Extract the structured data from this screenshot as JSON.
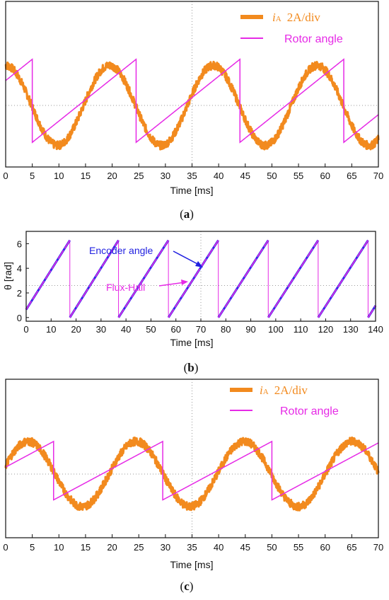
{
  "colors": {
    "current": "#f28a1e",
    "rotor": "#e62ae6",
    "encoder": "#2a2ae8",
    "grid": "#9a9a9a"
  },
  "chart_data": [
    {
      "id": "a",
      "type": "line",
      "caption": "a",
      "xlabel": "Time [ms]",
      "ylabel": "",
      "xlim": [
        0,
        70
      ],
      "xticks": [
        0,
        5,
        10,
        15,
        20,
        25,
        30,
        35,
        40,
        45,
        50,
        55,
        60,
        65,
        70
      ],
      "ylim": [
        -1,
        1
      ],
      "grid": "center crosshair (dotted)",
      "legend_position": "top-right",
      "legend": [
        {
          "italic": "i",
          "sub": "A",
          "rest": "2A/div"
        },
        {
          "text": "Rotor angle"
        }
      ],
      "series": [
        {
          "kind": "current",
          "period_ms": 19.5,
          "peak_time_ms": 0,
          "amplitude_div": 0.65
        },
        {
          "kind": "rotor_angle",
          "wraps_at_ms": [
            5,
            24.5,
            44,
            63.5
          ],
          "low_div": -0.6,
          "high_div": 0.75
        }
      ]
    },
    {
      "id": "b",
      "type": "line",
      "caption": "b",
      "xlabel": "Time [ms]",
      "ylabel": "θ [rad]",
      "xlim": [
        0,
        140
      ],
      "xticks": [
        0,
        10,
        20,
        30,
        40,
        50,
        60,
        70,
        80,
        90,
        100,
        110,
        120,
        130,
        140
      ],
      "ylim": [
        -0.3,
        7
      ],
      "yticks": [
        0,
        2,
        4,
        6
      ],
      "grid": "center crosshair (dotted)",
      "annotations": [
        "Encoder angle",
        "Flux-Hall"
      ],
      "series": [
        {
          "name": "Encoder angle",
          "wraps_at_ms": [
            17.5,
            37,
            57,
            77,
            97,
            117,
            137
          ],
          "range_rad": [
            0,
            6.28
          ]
        },
        {
          "name": "Flux-Hall",
          "wraps_at_ms": [
            17.5,
            37,
            57,
            77,
            97,
            117,
            137
          ],
          "range_rad": [
            0,
            6.28
          ]
        }
      ]
    },
    {
      "id": "c",
      "type": "line",
      "caption": "c",
      "xlabel": "Time [ms]",
      "ylabel": "",
      "xlim": [
        0,
        70
      ],
      "xticks": [
        0,
        5,
        10,
        15,
        20,
        25,
        30,
        35,
        40,
        45,
        50,
        55,
        60,
        65,
        70
      ],
      "ylim": [
        -1,
        1
      ],
      "grid": "center crosshair (dotted)",
      "legend_position": "top-right",
      "legend": [
        {
          "italic": "i",
          "sub": "A",
          "rest": "2A/div"
        },
        {
          "text": "Rotor angle"
        }
      ],
      "series": [
        {
          "kind": "current",
          "period_ms": 20.3,
          "peak_time_ms": 4.2,
          "amplitude_div": 0.53
        },
        {
          "kind": "rotor_angle",
          "wraps_at_ms": [
            9,
            29.5,
            50
          ],
          "low_div": -0.42,
          "high_div": 0.53
        }
      ]
    }
  ]
}
